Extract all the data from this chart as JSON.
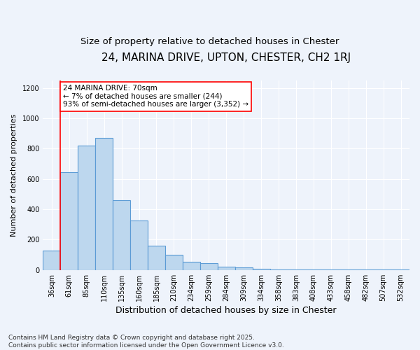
{
  "title": "24, MARINA DRIVE, UPTON, CHESTER, CH2 1RJ",
  "subtitle": "Size of property relative to detached houses in Chester",
  "xlabel": "Distribution of detached houses by size in Chester",
  "ylabel": "Number of detached properties",
  "bin_labels": [
    "36sqm",
    "61sqm",
    "85sqm",
    "110sqm",
    "135sqm",
    "160sqm",
    "185sqm",
    "210sqm",
    "234sqm",
    "259sqm",
    "284sqm",
    "309sqm",
    "334sqm",
    "358sqm",
    "383sqm",
    "408sqm",
    "433sqm",
    "458sqm",
    "482sqm",
    "507sqm",
    "532sqm"
  ],
  "bar_heights": [
    130,
    645,
    820,
    870,
    460,
    325,
    160,
    100,
    55,
    45,
    20,
    18,
    10,
    5,
    5,
    5,
    5,
    5,
    5,
    5,
    5
  ],
  "bar_color": "#BDD7EE",
  "bar_edge_color": "#5B9BD5",
  "red_line_x": 0.5,
  "annotation_text": "24 MARINA DRIVE: 70sqm\n← 7% of detached houses are smaller (244)\n93% of semi-detached houses are larger (3,352) →",
  "annotation_box_color": "white",
  "annotation_box_edge": "red",
  "ylim": [
    0,
    1250
  ],
  "yticks": [
    0,
    200,
    400,
    600,
    800,
    1000,
    1200
  ],
  "background_color": "#EEF3FB",
  "grid_color": "#FFFFFF",
  "footer_text": "Contains HM Land Registry data © Crown copyright and database right 2025.\nContains public sector information licensed under the Open Government Licence v3.0.",
  "title_fontsize": 11,
  "subtitle_fontsize": 9.5,
  "xlabel_fontsize": 9,
  "ylabel_fontsize": 8,
  "annotation_fontsize": 7.5,
  "footer_fontsize": 6.5,
  "tick_fontsize": 7
}
